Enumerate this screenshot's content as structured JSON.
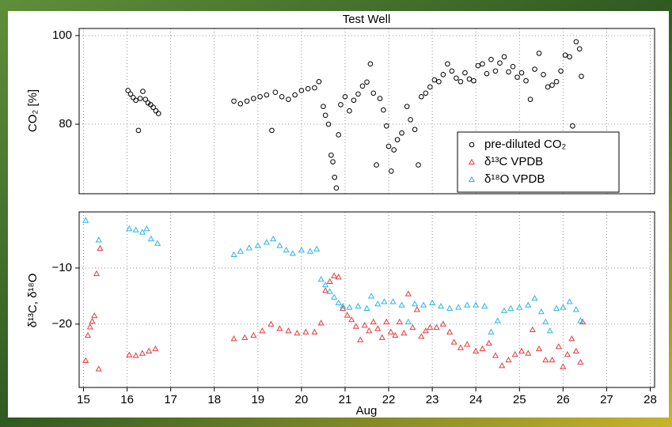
{
  "chart_data": [
    {
      "type": "scatter",
      "title": "Test Well",
      "y_label": "CO₂ [%]",
      "xlim": [
        14.9,
        28.1
      ],
      "ylim": [
        64.3,
        101.6
      ],
      "yticks": [
        80,
        100
      ],
      "grid": true,
      "legend": "lower right",
      "series": [
        {
          "name": "pre-diluted CO₂",
          "color": "#000000",
          "marker": "circle",
          "x": [
            16.02,
            16.08,
            16.14,
            16.2,
            16.26,
            16.3,
            16.36,
            16.42,
            16.48,
            16.54,
            16.6,
            16.66,
            16.72,
            18.45,
            18.6,
            18.75,
            18.9,
            19.05,
            19.2,
            19.32,
            19.4,
            19.55,
            19.7,
            19.85,
            20.0,
            20.15,
            20.3,
            20.4,
            20.5,
            20.55,
            20.62,
            20.68,
            20.72,
            20.76,
            20.8,
            20.85,
            20.9,
            21.0,
            21.1,
            21.2,
            21.3,
            21.4,
            21.5,
            21.58,
            21.65,
            21.72,
            21.8,
            21.88,
            21.95,
            22.0,
            22.06,
            22.12,
            22.2,
            22.3,
            22.42,
            22.5,
            22.6,
            22.68,
            22.75,
            22.85,
            22.95,
            23.05,
            23.15,
            23.25,
            23.35,
            23.45,
            23.55,
            23.65,
            23.75,
            23.85,
            23.95,
            24.05,
            24.15,
            24.25,
            24.35,
            24.45,
            24.55,
            24.65,
            24.75,
            24.85,
            24.95,
            25.05,
            25.15,
            25.25,
            25.35,
            25.45,
            25.55,
            25.65,
            25.75,
            25.85,
            25.95,
            26.05,
            26.15,
            26.22,
            26.3,
            26.38,
            26.42
          ],
          "values": [
            87.6,
            86.8,
            86.0,
            85.4,
            78.6,
            85.8,
            87.4,
            85.6,
            84.8,
            84.4,
            83.8,
            83.0,
            82.4,
            85.2,
            84.6,
            85.2,
            85.8,
            86.2,
            86.6,
            78.6,
            87.2,
            86.2,
            85.6,
            86.6,
            87.6,
            88.0,
            88.2,
            89.6,
            84.0,
            82.0,
            80.0,
            73.0,
            71.5,
            68.0,
            65.6,
            77.6,
            84.4,
            86.2,
            83.0,
            85.4,
            86.8,
            88.6,
            89.5,
            93.6,
            87.0,
            70.8,
            85.8,
            83.2,
            79.6,
            75.0,
            69.4,
            74.2,
            76.5,
            78.0,
            84.0,
            81.0,
            78.8,
            70.8,
            86.2,
            87.0,
            88.4,
            90.0,
            89.6,
            91.2,
            93.6,
            92.0,
            90.4,
            89.6,
            91.6,
            90.2,
            89.8,
            93.2,
            93.6,
            91.4,
            94.6,
            92.0,
            93.8,
            95.2,
            91.8,
            93.0,
            90.6,
            91.6,
            89.8,
            85.6,
            92.4,
            96.0,
            91.2,
            88.4,
            88.8,
            89.6,
            92.0,
            95.6,
            95.2,
            79.6,
            98.6,
            97.0,
            90.8
          ]
        }
      ]
    },
    {
      "type": "scatter",
      "x_label": "Aug",
      "y_label": "δ¹³C, δ¹⁸O",
      "xlim": [
        14.9,
        28.1
      ],
      "ylim": [
        -31.3,
        0
      ],
      "grid": true,
      "xticks": [
        15,
        16,
        17,
        18,
        19,
        20,
        21,
        22,
        23,
        24,
        25,
        26,
        27,
        28
      ],
      "yticks": [
        {
          "value": -10,
          "label": "−10"
        },
        {
          "value": -20,
          "label": "−20"
        }
      ],
      "series": [
        {
          "name": "δ¹³C VPDB",
          "color": "#e8383d",
          "marker": "triangle",
          "x": [
            15.05,
            15.1,
            15.15,
            15.2,
            15.25,
            15.3,
            15.35,
            15.38,
            16.05,
            16.2,
            16.35,
            16.5,
            16.65,
            18.45,
            18.7,
            18.9,
            19.1,
            19.3,
            19.5,
            19.7,
            19.9,
            20.1,
            20.3,
            20.45,
            20.55,
            20.65,
            20.75,
            20.85,
            20.95,
            21.05,
            21.15,
            21.25,
            21.35,
            21.45,
            21.55,
            21.65,
            21.75,
            21.85,
            21.95,
            22.05,
            22.15,
            22.25,
            22.35,
            22.45,
            22.55,
            22.65,
            22.75,
            22.85,
            22.95,
            23.1,
            23.25,
            23.4,
            23.5,
            23.65,
            23.8,
            24.0,
            24.15,
            24.3,
            24.45,
            24.6,
            24.75,
            24.9,
            25.05,
            25.2,
            25.3,
            25.45,
            25.6,
            25.75,
            25.9,
            26.0,
            26.1,
            26.2,
            26.3,
            26.4,
            26.45
          ],
          "values": [
            -26.5,
            -22,
            -20.5,
            -19.5,
            -18.5,
            -11,
            -28,
            -6.5,
            -25.5,
            -25.6,
            -25.2,
            -24.8,
            -24.4,
            -22.6,
            -22.4,
            -22.0,
            -21.2,
            -20.0,
            -20.8,
            -21.2,
            -21.6,
            -21.4,
            -21.4,
            -19.8,
            -14.0,
            -12.4,
            -11.4,
            -11.6,
            -17.2,
            -18.4,
            -19.2,
            -20.4,
            -22.8,
            -20.2,
            -21.2,
            -19.6,
            -20.8,
            -22.4,
            -19.6,
            -21.4,
            -22.0,
            -19.6,
            -21.6,
            -14.6,
            -20.6,
            -17.4,
            -22.2,
            -21.2,
            -20.6,
            -20.6,
            -20.0,
            -21.4,
            -23.2,
            -24.2,
            -23.6,
            -24.8,
            -24.4,
            -23.4,
            -25.6,
            -27.4,
            -26.4,
            -25.4,
            -24.8,
            -25.2,
            -21.0,
            -24.4,
            -26.4,
            -26.4,
            -24.0,
            -27.6,
            -25.4,
            -22.6,
            -24.8,
            -26.8,
            -19.6
          ]
        },
        {
          "name": "δ¹⁸O VPDB",
          "color": "#29b6e8",
          "marker": "triangle",
          "x": [
            15.05,
            15.35,
            16.05,
            16.2,
            16.35,
            16.45,
            16.55,
            16.7,
            18.45,
            18.6,
            18.8,
            19.0,
            19.2,
            19.35,
            19.5,
            19.65,
            19.8,
            20.0,
            20.2,
            20.35,
            20.45,
            20.55,
            20.65,
            20.75,
            20.85,
            20.95,
            21.1,
            21.3,
            21.5,
            21.6,
            21.75,
            21.9,
            22.1,
            22.3,
            22.45,
            22.6,
            22.8,
            23.0,
            23.2,
            23.4,
            23.6,
            23.8,
            24.0,
            24.2,
            24.35,
            24.5,
            24.65,
            24.8,
            25.0,
            25.2,
            25.35,
            25.5,
            25.6,
            25.7,
            25.85,
            26.0,
            26.15,
            26.3,
            26.4
          ],
          "values": [
            -1.5,
            -5.0,
            -3.0,
            -3.2,
            -3.6,
            -3.0,
            -4.8,
            -5.6,
            -7.6,
            -7.0,
            -6.4,
            -6.0,
            -5.4,
            -4.8,
            -6.0,
            -6.8,
            -7.4,
            -6.8,
            -7.0,
            -6.6,
            -12.0,
            -13.0,
            -14.2,
            -15.2,
            -16.2,
            -16.8,
            -17.0,
            -16.8,
            -17.2,
            -15.0,
            -16.4,
            -16.0,
            -16.0,
            -16.6,
            -19.6,
            -16.4,
            -16.6,
            -16.2,
            -16.8,
            -17.2,
            -17.0,
            -16.6,
            -16.6,
            -16.8,
            -21.4,
            -19.4,
            -17.6,
            -17.2,
            -17.0,
            -16.6,
            -15.4,
            -17.8,
            -19.6,
            -21.2,
            -17.2,
            -17.0,
            -16.0,
            -17.4,
            -19.4
          ]
        }
      ]
    }
  ]
}
